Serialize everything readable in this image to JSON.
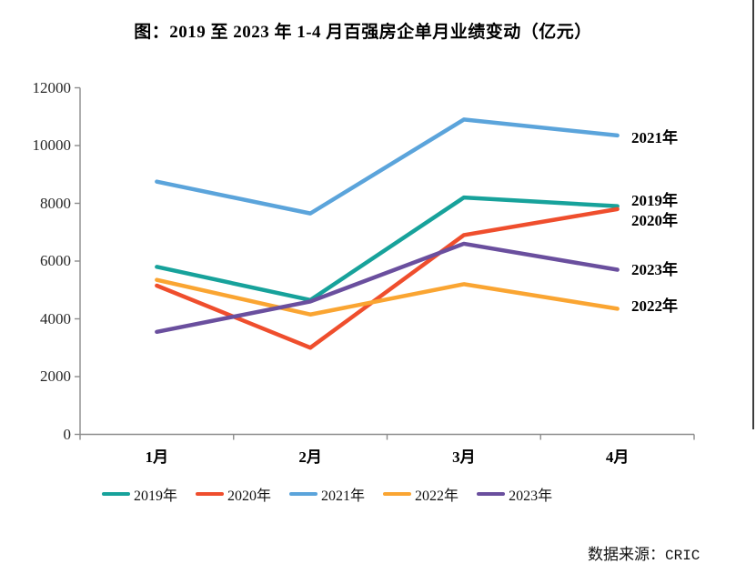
{
  "title": "图：2019 至 2023 年 1-4 月百强房企单月业绩变动（亿元）",
  "source": {
    "label": "数据来源：",
    "value": "CRIC"
  },
  "chart_data": {
    "type": "line",
    "title": "图：2019 至 2023 年 1-4 月百强房企单月业绩变动（亿元）",
    "xlabel": "",
    "ylabel": "",
    "unit": "亿元",
    "categories": [
      "1月",
      "2月",
      "3月",
      "4月"
    ],
    "series": [
      {
        "name": "2019年",
        "color": "#17A29B",
        "values": [
          5800,
          4650,
          8200,
          7900
        ]
      },
      {
        "name": "2020年",
        "color": "#EF4E2D",
        "values": [
          5150,
          3000,
          6900,
          7800
        ]
      },
      {
        "name": "2021年",
        "color": "#5BA4DB",
        "values": [
          8750,
          7650,
          10900,
          10350
        ]
      },
      {
        "name": "2022年",
        "color": "#FAA532",
        "values": [
          5350,
          4150,
          5200,
          4350
        ]
      },
      {
        "name": "2023年",
        "color": "#6A4F9E",
        "values": [
          3550,
          4600,
          6600,
          5700
        ]
      }
    ],
    "ylim": [
      0,
      12000
    ],
    "yticks": [
      0,
      2000,
      4000,
      6000,
      8000,
      10000,
      12000
    ],
    "grid": false,
    "legend_position": "bottom",
    "axis_color": "#8C8C8C",
    "end_labels": [
      {
        "text": "2021年",
        "anchor_value": 10260
      },
      {
        "text": "2019年",
        "anchor_value": 8090
      },
      {
        "text": "2020年",
        "anchor_value": 7380
      },
      {
        "text": "2023年",
        "anchor_value": 5690
      },
      {
        "text": "2022年",
        "anchor_value": 4430
      }
    ]
  }
}
